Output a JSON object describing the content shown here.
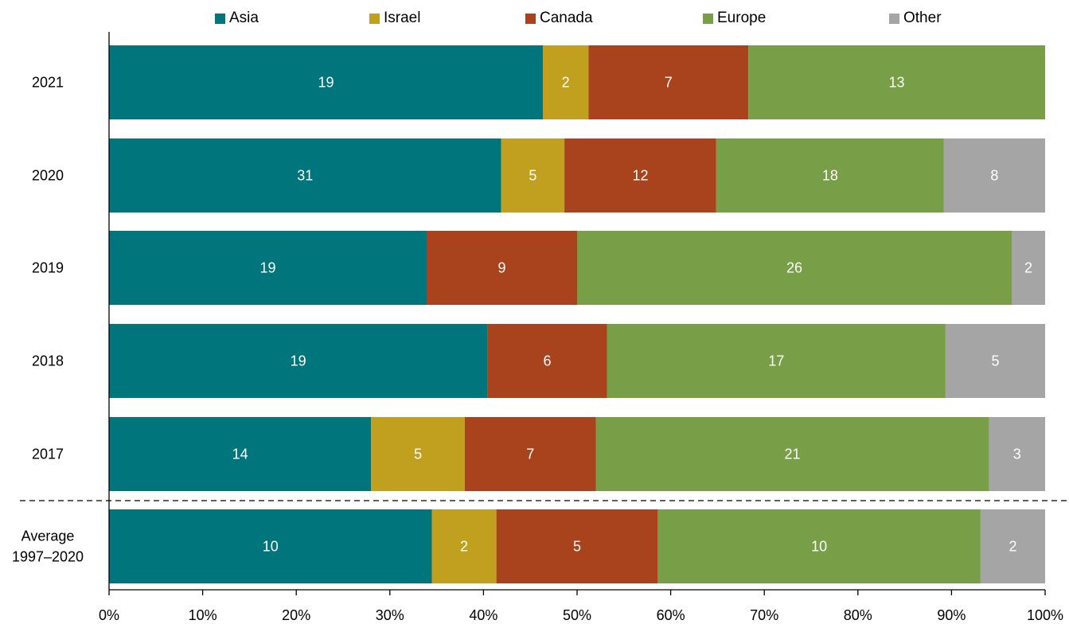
{
  "chart_data": {
    "type": "bar",
    "orientation": "horizontal",
    "stacked": true,
    "percent": true,
    "categories": [
      "2021",
      "2020",
      "2019",
      "2018",
      "2017",
      "Average\n1997–2020"
    ],
    "series": [
      {
        "name": "Asia",
        "color": "#00757C",
        "values": [
          19,
          31,
          19,
          19,
          14,
          10
        ]
      },
      {
        "name": "Israel",
        "color": "#C2A01F",
        "values": [
          2,
          5,
          0,
          0,
          5,
          2
        ]
      },
      {
        "name": "Canada",
        "color": "#A9431E",
        "values": [
          7,
          12,
          9,
          6,
          7,
          5
        ]
      },
      {
        "name": "Europe",
        "color": "#789E47",
        "values": [
          13,
          18,
          26,
          17,
          21,
          10
        ]
      },
      {
        "name": "Other",
        "color": "#A5A5A5",
        "values": [
          0,
          8,
          2,
          5,
          3,
          2
        ]
      }
    ],
    "xlim": [
      0,
      100
    ],
    "xticks": [
      "0%",
      "10%",
      "20%",
      "30%",
      "40%",
      "50%",
      "60%",
      "70%",
      "80%",
      "90%",
      "100%"
    ],
    "legend_position": "top",
    "grid": false,
    "separator": "dashed line above average row"
  }
}
